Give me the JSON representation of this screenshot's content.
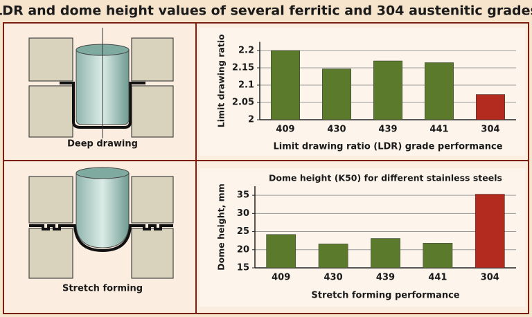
{
  "title": "LDR and dome height values of several ferritic and 304 austenitic grades",
  "diagrams": [
    {
      "label": "Deep drawing"
    },
    {
      "label": "Stretch forming"
    }
  ],
  "chart_data": [
    {
      "type": "bar",
      "y_label": "Limit drawing ratio",
      "x_label": "Limit drawing ratio (LDR) grade performance",
      "categories": [
        "409",
        "430",
        "439",
        "441",
        "304"
      ],
      "values": [
        2.2,
        2.147,
        2.17,
        2.165,
        2.073
      ],
      "colors": [
        "#5b7a2b",
        "#5b7a2b",
        "#5b7a2b",
        "#5b7a2b",
        "#b32a1f"
      ],
      "ylim": [
        2,
        2.225
      ],
      "yticks": [
        2,
        2.05,
        2.1,
        2.15,
        2.2
      ],
      "grid": true
    },
    {
      "type": "bar",
      "title": "Dome height (K50) for different stainless steels",
      "y_label": "Dome height, mm",
      "x_label": "Stretch forming performance",
      "categories": [
        "409",
        "430",
        "439",
        "441",
        "304"
      ],
      "values": [
        24.2,
        21.6,
        23.1,
        21.8,
        35.3
      ],
      "colors": [
        "#5b7a2b",
        "#5b7a2b",
        "#5b7a2b",
        "#5b7a2b",
        "#b32a1f"
      ],
      "ylim": [
        15,
        37.5
      ],
      "yticks": [
        15,
        20,
        25,
        30,
        35
      ],
      "grid": true
    }
  ]
}
